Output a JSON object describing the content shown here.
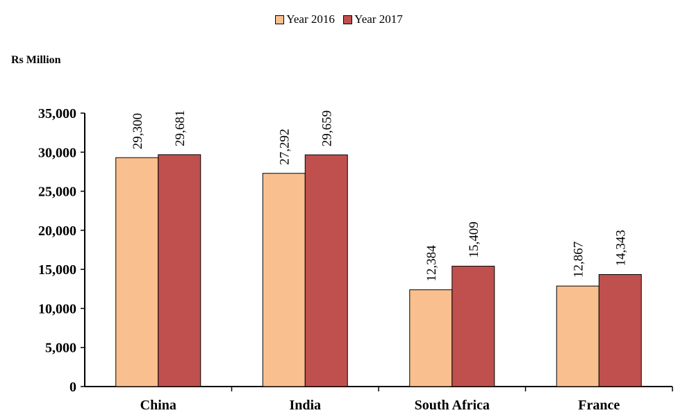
{
  "chart_data": {
    "type": "bar",
    "unit_label": "Rs Million",
    "categories": [
      "China",
      "India",
      "South Africa",
      "France"
    ],
    "series": [
      {
        "name": "Year 2016",
        "color": "#F9BF8F",
        "values": [
          29300,
          27292,
          12384,
          12867
        ],
        "labels": [
          "29,300",
          "27,292",
          "12,384",
          "12,867"
        ]
      },
      {
        "name": "Year 2017",
        "color": "#C0504D",
        "values": [
          29681,
          29659,
          15409,
          14343
        ],
        "labels": [
          "29,681",
          "29,659",
          "15,409",
          "14,343"
        ]
      }
    ],
    "ylim": [
      0,
      35000
    ],
    "yticks": [
      "0",
      "5,000",
      "10,000",
      "15,000",
      "20,000",
      "25,000",
      "30,000",
      "35,000"
    ],
    "ytick_values": [
      0,
      5000,
      10000,
      15000,
      20000,
      25000,
      30000,
      35000
    ],
    "legend_position": "top-center",
    "grid": false
  }
}
